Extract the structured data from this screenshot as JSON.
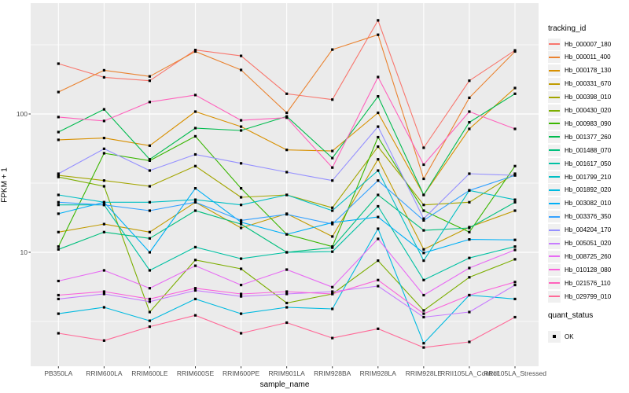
{
  "figure": {
    "background": "#FFFFFF",
    "panel_background": "#EBEBEB",
    "gridline_color": "#FFFFFF",
    "marker_color": "#000000",
    "axis_text_color": "#4D4D4D"
  },
  "axes": {
    "x_title": "sample_name",
    "y_title": "FPKM + 1",
    "y_tick_labels": [
      "100",
      "10"
    ]
  },
  "legend": {
    "series_title": "tracking_id",
    "quant_title": "quant_status",
    "quant_ok_label": "OK"
  },
  "chart_data": {
    "type": "line",
    "title": "",
    "xlabel": "sample_name",
    "ylabel": "FPKM + 1",
    "y_scale": "log10",
    "y_ticks": [
      100,
      10
    ],
    "y_minor_gridlines": [
      316.23,
      31.62,
      3.162
    ],
    "ylim": [
      1.5,
      620
    ],
    "grid": true,
    "legend_position": "right",
    "marker": {
      "shape": "square",
      "color": "#000000",
      "meaning": "quant_status OK"
    },
    "categories": [
      "PB350LA",
      "RRIM600LA",
      "RRIM600LE",
      "RRIM600SE",
      "RRIM600PE",
      "RRIM901LA",
      "RRIM928BA",
      "RRIM928LA",
      "RRIM928LE",
      "RRII105LA_Control",
      "RRII105LA_Stressed"
    ],
    "series": [
      {
        "name": "Hb_000007_180",
        "color": "#F8766D",
        "values": [
          231,
          184,
          174,
          290,
          263,
          140,
          127,
          475,
          57,
          174,
          288
        ]
      },
      {
        "name": "Hb_000011_400",
        "color": "#EA8331",
        "values": [
          144,
          207,
          187,
          283,
          208,
          102,
          292,
          374,
          34,
          131,
          283
        ]
      },
      {
        "name": "Hb_000178_130",
        "color": "#D89000",
        "values": [
          65,
          67,
          59,
          104,
          81,
          55,
          54,
          102,
          26,
          78,
          154
        ]
      },
      {
        "name": "Hb_000331_670",
        "color": "#C09B00",
        "values": [
          14,
          16,
          14,
          23,
          15,
          19,
          13,
          47,
          10.5,
          15.2,
          20
        ]
      },
      {
        "name": "Hb_000398_010",
        "color": "#A3A500",
        "values": [
          36,
          33,
          30,
          42,
          25,
          26,
          21,
          58,
          22,
          23,
          37
        ]
      },
      {
        "name": "Hb_000430_020",
        "color": "#7CAE00",
        "values": [
          35,
          30,
          3.7,
          8.8,
          7.6,
          4.3,
          5,
          8.7,
          3.8,
          6.6,
          8.9
        ]
      },
      {
        "name": "Hb_000983_090",
        "color": "#39B600",
        "values": [
          11,
          52,
          46,
          69,
          29,
          13.5,
          11,
          68,
          20,
          14,
          42
        ]
      },
      {
        "name": "Hb_001377_260",
        "color": "#00BB4E",
        "values": [
          74,
          108,
          47,
          79,
          76,
          96,
          48,
          134,
          26,
          87,
          140
        ]
      },
      {
        "name": "Hb_001488_070",
        "color": "#00BF7D",
        "values": [
          10.5,
          14,
          12.6,
          20,
          16,
          10,
          10.8,
          26,
          14.4,
          15,
          23
        ]
      },
      {
        "name": "Hb_001617_050",
        "color": "#00C1A3",
        "values": [
          22,
          22,
          7.4,
          10.9,
          9,
          10,
          10.1,
          21.5,
          6.3,
          9.1,
          11
        ]
      },
      {
        "name": "Hb_001799_210",
        "color": "#00BFC4",
        "values": [
          26,
          23,
          23,
          24,
          22,
          26,
          20,
          39,
          8.7,
          28,
          24
        ]
      },
      {
        "name": "Hb_001892_020",
        "color": "#00BAE0",
        "values": [
          3.6,
          4,
          3.2,
          4.6,
          3.6,
          4,
          3.9,
          14.8,
          2.2,
          4.9,
          4.6
        ]
      },
      {
        "name": "Hb_003082_010",
        "color": "#00B0F6",
        "values": [
          19,
          23,
          10,
          29,
          16.5,
          13.5,
          16.4,
          18,
          9.9,
          12.4,
          12.3
        ]
      },
      {
        "name": "Hb_003376_350",
        "color": "#35A2FF",
        "values": [
          23,
          22,
          20,
          23,
          17,
          18.8,
          16,
          33,
          17,
          28,
          36
        ]
      },
      {
        "name": "Hb_004204_170",
        "color": "#9590FF",
        "values": [
          37,
          56,
          39,
          51,
          44,
          38,
          33,
          81,
          17.5,
          37,
          36
        ]
      },
      {
        "name": "Hb_005051_020",
        "color": "#C77CFF",
        "values": [
          4.6,
          5,
          4.4,
          5.3,
          4.8,
          5,
          5.2,
          5.7,
          3.4,
          3.7,
          5.8
        ]
      },
      {
        "name": "Hb_008725_260",
        "color": "#E76BF3",
        "values": [
          6.2,
          7.4,
          5.5,
          8,
          5.8,
          7.5,
          5.6,
          12.5,
          4.9,
          7.7,
          10.4
        ]
      },
      {
        "name": "Hb_010128_080",
        "color": "#FA62DB",
        "values": [
          4.9,
          5.2,
          4.6,
          5.5,
          5,
          5.2,
          5,
          6.3,
          3.6,
          4.9,
          6.1
        ]
      },
      {
        "name": "Hb_021576_110",
        "color": "#FF62BC",
        "values": [
          95,
          89,
          122,
          137,
          90,
          94,
          41,
          185,
          43,
          104,
          78
        ]
      },
      {
        "name": "Hb_029799_010",
        "color": "#FF6A98",
        "values": [
          2.6,
          2.3,
          2.9,
          3.5,
          2.6,
          3.1,
          2.4,
          2.8,
          2.05,
          2.25,
          3.4
        ]
      }
    ]
  }
}
